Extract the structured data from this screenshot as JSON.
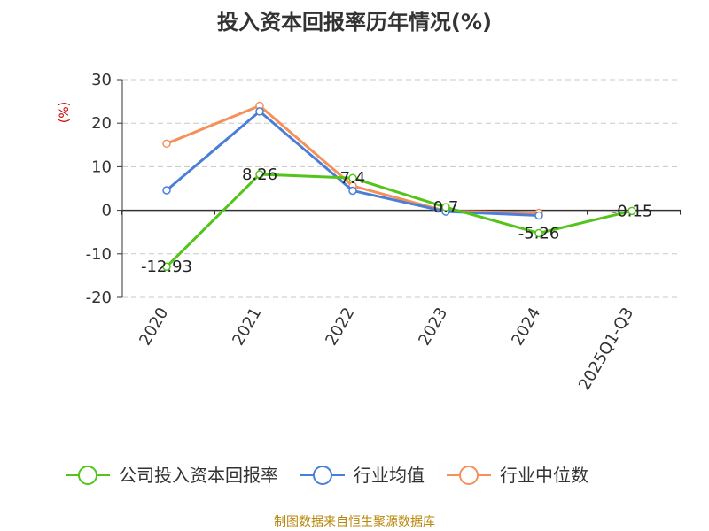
{
  "chart_data": {
    "type": "line",
    "title": "投入资本回报率历年情况(%)",
    "ylabel": "(%)",
    "xlabel": "",
    "categories": [
      "2020",
      "2021",
      "2022",
      "2023",
      "2024",
      "2025Q1-Q3"
    ],
    "ylim": [
      -20,
      30
    ],
    "yticks": [
      30,
      20,
      10,
      0,
      -10,
      -20
    ],
    "grid": true,
    "series": [
      {
        "name": "公司投入资本回报率",
        "color": "#52c41a",
        "values": [
          -12.93,
          8.26,
          7.4,
          0.7,
          -5.26,
          -0.15
        ],
        "labels": [
          "-12.93",
          "8.26",
          "7.4",
          "0.7",
          "-5.26",
          "-0.15"
        ]
      },
      {
        "name": "行业均值",
        "color": "#4a7fd8",
        "values": [
          4.6,
          22.7,
          4.5,
          -0.3,
          -1.2,
          null
        ]
      },
      {
        "name": "行业中位数",
        "color": "#f5905a",
        "values": [
          15.3,
          24.0,
          5.6,
          -0.2,
          -0.6,
          null
        ]
      }
    ],
    "legend_position": "bottom",
    "source": "制图数据来自恒生聚源数据库"
  }
}
